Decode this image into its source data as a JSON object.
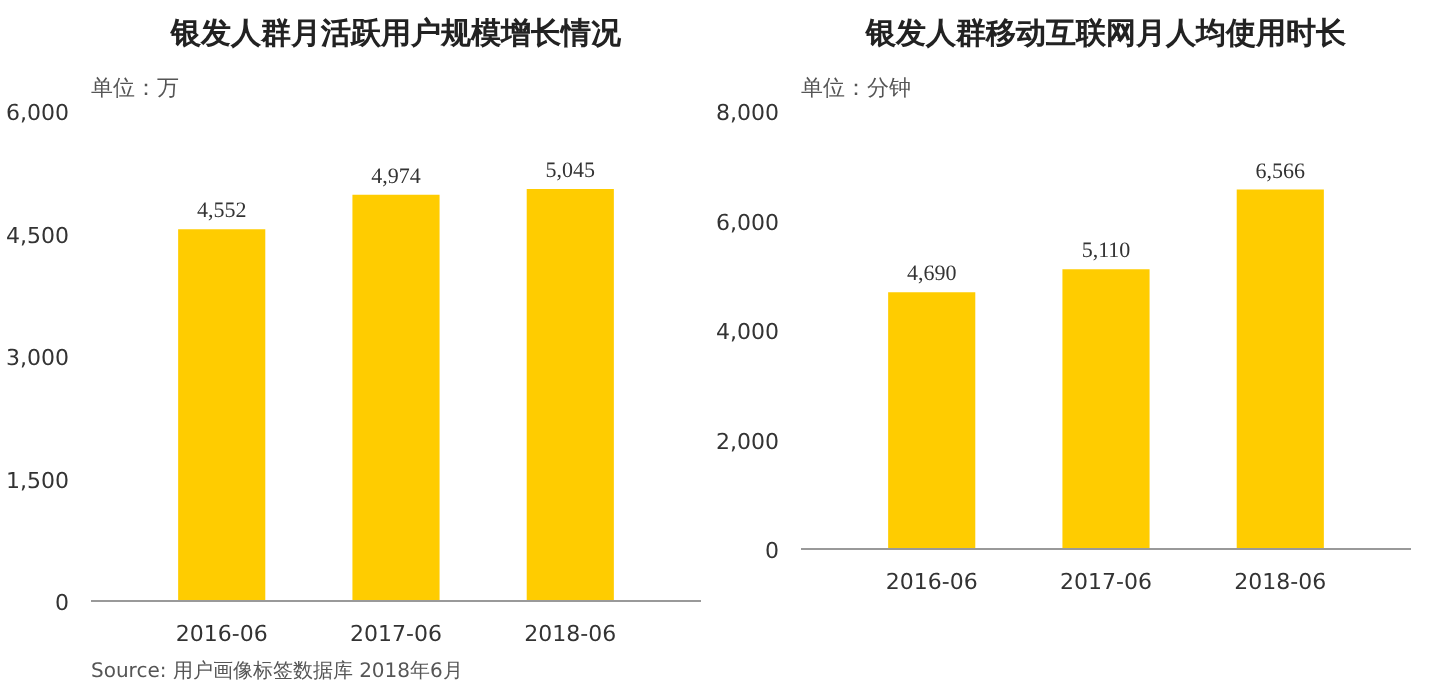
{
  "chart_data": [
    {
      "type": "bar",
      "title": "银发人群月活跃用户规模增长情况",
      "ylabel": "单位：万",
      "categories": [
        "2016-06",
        "2017-06",
        "2018-06"
      ],
      "values": [
        4552,
        4974,
        5045
      ],
      "color": "#ffcc00",
      "ylim": [
        0,
        6000
      ],
      "yticks": [
        {
          "value": 0,
          "label": "0"
        },
        {
          "value": 1500,
          "label": "1,500"
        },
        {
          "value": 3000,
          "label": "3,000"
        },
        {
          "value": 4500,
          "label": "4,500"
        },
        {
          "value": 6000,
          "label": "6,000"
        }
      ],
      "data_labels": true,
      "value_labels": [
        "4,552",
        "4,974",
        "5,045"
      ],
      "annotations": [
        "Source:  用户画像标签数据库 2018年6月"
      ]
    },
    {
      "type": "bar",
      "title": "银发人群移动互联网月人均使用时长",
      "ylabel": "单位：分钟",
      "categories": [
        "2016-06",
        "2017-06",
        "2018-06"
      ],
      "values": [
        4690,
        5110,
        6566
      ],
      "color": "#ffcc00",
      "ylim": [
        0,
        8000
      ],
      "yticks": [
        {
          "value": 0,
          "label": "0"
        },
        {
          "value": 2000,
          "label": "2,000"
        },
        {
          "value": 4000,
          "label": "4,000"
        },
        {
          "value": 6000,
          "label": "6,000"
        },
        {
          "value": 8000,
          "label": "8,000"
        }
      ],
      "data_labels": true,
      "value_labels": [
        "4,690",
        "5,110",
        "6,566"
      ]
    }
  ]
}
